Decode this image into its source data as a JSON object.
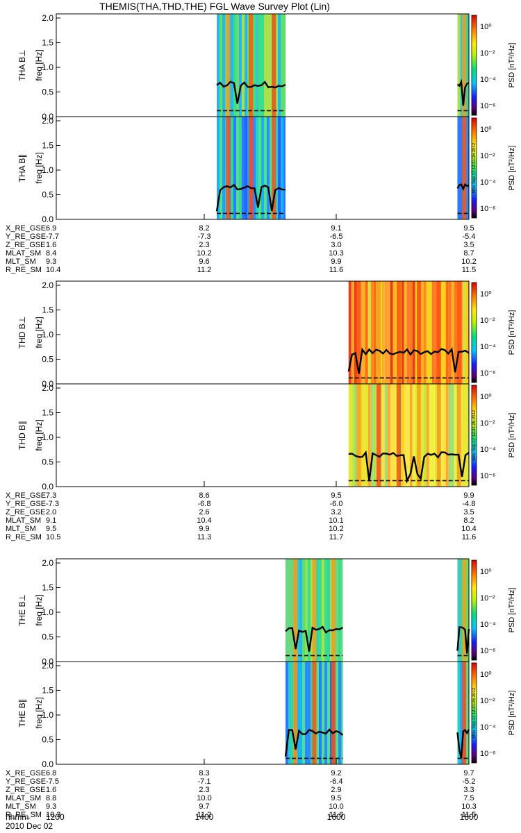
{
  "title": "THEMIS(THA,THD,THE) FGL Wave Survey Plot (Lin)",
  "colorbar_label": "PSD [nT²/Hz]",
  "colorbar_ticks": [
    "10⁰",
    "10⁻²",
    "10⁻⁴",
    "10⁻⁶"
  ],
  "timestamp_text": "Mon Sep 17 12:31:26 2012",
  "time_axis": {
    "row_label": "hhmm",
    "date": "2010 Dec 02",
    "ticks": [
      "1200",
      "1400",
      "1600",
      "1800"
    ]
  },
  "chart_data": [
    {
      "type": "heatmap",
      "probe": "THA",
      "panels": [
        {
          "ylabel_top": "THA B⊥",
          "ylabel_unit": "freq [Hz]"
        },
        {
          "ylabel_top": "THA B∥",
          "ylabel_unit": "freq [Hz]"
        }
      ],
      "y_ticks": [
        "0.0",
        "0.5",
        "1.0",
        "1.5",
        "2.0"
      ],
      "ylim": [
        0,
        2.0
      ],
      "xlim_hhmm": [
        "1200",
        "1800"
      ],
      "data_intervals_hhmm": [
        [
          "1420",
          "1520"
        ],
        [
          "1750",
          "1800"
        ]
      ],
      "orbit_table": {
        "rows": [
          {
            "label": "X_RE_GSE",
            "values": [
              "6.9",
              "8.2",
              "9.1",
              "9.5"
            ]
          },
          {
            "label": "Y_RE_GSE",
            "values": [
              "-7.7",
              "-7.3",
              "-6.5",
              "-5.4"
            ]
          },
          {
            "label": "Z_RE_GSE",
            "values": [
              "1.6",
              "2.3",
              "3.0",
              "3.5"
            ]
          },
          {
            "label": "MLAT_SM",
            "values": [
              "8.4",
              "10.2",
              "10.3",
              "8.7"
            ]
          },
          {
            "label": "MLT_SM",
            "values": [
              "9.3",
              "9.6",
              "9.9",
              "10.2"
            ]
          },
          {
            "label": "R_RE_SM",
            "values": [
              "10.4",
              "11.2",
              "11.6",
              "11.5"
            ]
          }
        ]
      }
    },
    {
      "type": "heatmap",
      "probe": "THD",
      "panels": [
        {
          "ylabel_top": "THD B⊥",
          "ylabel_unit": "freq [Hz]"
        },
        {
          "ylabel_top": "THD B∥",
          "ylabel_unit": "freq [Hz]"
        }
      ],
      "y_ticks": [
        "0.0",
        "0.5",
        "1.0",
        "1.5",
        "2.0"
      ],
      "ylim": [
        0,
        2.0
      ],
      "xlim_hhmm": [
        "1200",
        "1800"
      ],
      "data_intervals_hhmm": [
        [
          "1615",
          "1800"
        ]
      ],
      "orbit_table": {
        "rows": [
          {
            "label": "X_RE_GSE",
            "values": [
              "7.3",
              "8.6",
              "9.5",
              "9.9"
            ]
          },
          {
            "label": "Y_RE_GSE",
            "values": [
              "-7.3",
              "-6.8",
              "-6.0",
              "-4.8"
            ]
          },
          {
            "label": "Z_RE_GSE",
            "values": [
              "2.0",
              "2.6",
              "3.2",
              "3.5"
            ]
          },
          {
            "label": "MLAT_SM",
            "values": [
              "9.1",
              "10.4",
              "10.1",
              "8.2"
            ]
          },
          {
            "label": "MLT_SM",
            "values": [
              "9.5",
              "9.9",
              "10.2",
              "10.4"
            ]
          },
          {
            "label": "R_RE_SM",
            "values": [
              "10.5",
              "11.3",
              "11.7",
              "11.6"
            ]
          }
        ]
      }
    },
    {
      "type": "heatmap",
      "probe": "THE",
      "panels": [
        {
          "ylabel_top": "THE B⊥",
          "ylabel_unit": "freq [Hz]"
        },
        {
          "ylabel_top": "THE B∥",
          "ylabel_unit": "freq [Hz]"
        }
      ],
      "y_ticks": [
        "0.0",
        "0.5",
        "1.0",
        "1.5",
        "2.0"
      ],
      "ylim": [
        0,
        2.0
      ],
      "xlim_hhmm": [
        "1200",
        "1800"
      ],
      "data_intervals_hhmm": [
        [
          "1520",
          "1610"
        ],
        [
          "1750",
          "1800"
        ]
      ],
      "orbit_table": {
        "rows": [
          {
            "label": "X_RE_GSE",
            "values": [
              "6.8",
              "8.3",
              "9.2",
              "9.7"
            ]
          },
          {
            "label": "Y_RE_GSE",
            "values": [
              "-7.5",
              "-7.1",
              "-6.4",
              "-5.2"
            ]
          },
          {
            "label": "Z_RE_GSE",
            "values": [
              "1.6",
              "2.3",
              "2.9",
              "3.3"
            ]
          },
          {
            "label": "MLAT_SM",
            "values": [
              "8.8",
              "10.0",
              "9.5",
              "7.5"
            ]
          },
          {
            "label": "MLT_SM",
            "values": [
              "9.3",
              "9.7",
              "10.0",
              "10.3"
            ]
          },
          {
            "label": "R_RE_SM",
            "values": [
              "10.3",
              "11.2",
              "11.6",
              "11.5"
            ]
          }
        ]
      }
    }
  ]
}
